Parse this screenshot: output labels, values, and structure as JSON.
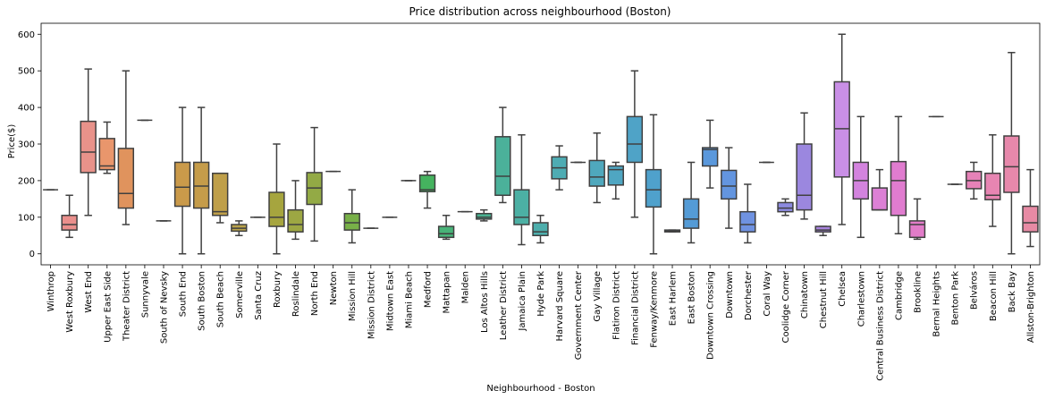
{
  "chart_data": {
    "type": "boxplot",
    "title": "Price distribution across neighbourhood (Boston)",
    "xlabel": "Neighbourhood - Boston",
    "ylabel": "Price($)",
    "ylim": [
      -30,
      630
    ],
    "yticks": [
      0,
      100,
      200,
      300,
      400,
      500,
      600
    ],
    "grid": false,
    "boxes": [
      {
        "category": "Winthrop",
        "color": "#ea8f8c",
        "whislo": 175,
        "q1": 175,
        "med": 175,
        "q3": 175,
        "whishi": 175
      },
      {
        "category": "West Roxbury",
        "color": "#ea8f8c",
        "whislo": 45,
        "q1": 65,
        "med": 80,
        "q3": 105,
        "whishi": 160
      },
      {
        "category": "West End",
        "color": "#e8928a",
        "whislo": 105,
        "q1": 222,
        "med": 278,
        "q3": 362,
        "whishi": 505
      },
      {
        "category": "Upper East Side",
        "color": "#e9966c",
        "whislo": 220,
        "q1": 230,
        "med": 240,
        "q3": 315,
        "whishi": 360
      },
      {
        "category": "Theater District",
        "color": "#e0935d",
        "whislo": 80,
        "q1": 125,
        "med": 165,
        "q3": 288,
        "whishi": 500
      },
      {
        "category": "Sunnyvale",
        "color": "#d7965c",
        "whislo": 365,
        "q1": 365,
        "med": 365,
        "q3": 365,
        "whishi": 365
      },
      {
        "category": "South of Nevsky",
        "color": "#d29a4e",
        "whislo": 90,
        "q1": 90,
        "med": 90,
        "q3": 90,
        "whishi": 90
      },
      {
        "category": "South End",
        "color": "#ca9a4a",
        "whislo": 0,
        "q1": 130,
        "med": 182,
        "q3": 250,
        "whishi": 400
      },
      {
        "category": "South Boston",
        "color": "#c59c4a",
        "whislo": 0,
        "q1": 125,
        "med": 185,
        "q3": 250,
        "whishi": 400
      },
      {
        "category": "South Beach",
        "color": "#bf9f49",
        "whislo": 85,
        "q1": 105,
        "med": 115,
        "q3": 220,
        "whishi": 220
      },
      {
        "category": "Somerville",
        "color": "#b8a24a",
        "whislo": 50,
        "q1": 62,
        "med": 70,
        "q3": 80,
        "whishi": 90
      },
      {
        "category": "Santa Cruz",
        "color": "#b0a44a",
        "whislo": 100,
        "q1": 100,
        "med": 100,
        "q3": 100,
        "whishi": 100
      },
      {
        "category": "Roxbury",
        "color": "#a6a53e",
        "whislo": 0,
        "q1": 75,
        "med": 100,
        "q3": 168,
        "whishi": 300
      },
      {
        "category": "Roslindale",
        "color": "#9da743",
        "whislo": 40,
        "q1": 60,
        "med": 80,
        "q3": 120,
        "whishi": 200
      },
      {
        "category": "North End",
        "color": "#93aa45",
        "whislo": 35,
        "q1": 135,
        "med": 180,
        "q3": 222,
        "whishi": 345
      },
      {
        "category": "Newton",
        "color": "#85ad46",
        "whislo": 225,
        "q1": 225,
        "med": 225,
        "q3": 225,
        "whishi": 225
      },
      {
        "category": "Mission Hill",
        "color": "#78b048",
        "whislo": 30,
        "q1": 65,
        "med": 85,
        "q3": 110,
        "whishi": 175
      },
      {
        "category": "Mission District",
        "color": "#6cb24b",
        "whislo": 70,
        "q1": 70,
        "med": 70,
        "q3": 70,
        "whishi": 70
      },
      {
        "category": "Midtown East",
        "color": "#5fb44e",
        "whislo": 100,
        "q1": 100,
        "med": 100,
        "q3": 100,
        "whishi": 100
      },
      {
        "category": "Miami Beach",
        "color": "#52b550",
        "whislo": 200,
        "q1": 200,
        "med": 200,
        "q3": 200,
        "whishi": 200
      },
      {
        "category": "Medford",
        "color": "#45b35f",
        "whislo": 125,
        "q1": 170,
        "med": 175,
        "q3": 215,
        "whishi": 225
      },
      {
        "category": "Mattapan",
        "color": "#48b378",
        "whislo": 40,
        "q1": 45,
        "med": 55,
        "q3": 75,
        "whishi": 105
      },
      {
        "category": "Malden",
        "color": "#49b286",
        "whislo": 115,
        "q1": 115,
        "med": 115,
        "q3": 115,
        "whishi": 115
      },
      {
        "category": "Los Altos Hills",
        "color": "#49b290",
        "whislo": 90,
        "q1": 95,
        "med": 100,
        "q3": 110,
        "whishi": 120
      },
      {
        "category": "Leather District",
        "color": "#4bb19a",
        "whislo": 140,
        "q1": 160,
        "med": 212,
        "q3": 320,
        "whishi": 400
      },
      {
        "category": "Jamaica Plain",
        "color": "#4cb0a4",
        "whislo": 25,
        "q1": 80,
        "med": 100,
        "q3": 175,
        "whishi": 325
      },
      {
        "category": "Hyde Park",
        "color": "#4daeac",
        "whislo": 30,
        "q1": 50,
        "med": 60,
        "q3": 85,
        "whishi": 105
      },
      {
        "category": "Harvard Square",
        "color": "#4eacb3",
        "whislo": 175,
        "q1": 205,
        "med": 235,
        "q3": 265,
        "whishi": 295
      },
      {
        "category": "Government Center",
        "color": "#4faab8",
        "whislo": 250,
        "q1": 250,
        "med": 250,
        "q3": 250,
        "whishi": 250
      },
      {
        "category": "Gay Village",
        "color": "#4fa8bd",
        "whislo": 140,
        "q1": 185,
        "med": 210,
        "q3": 255,
        "whishi": 330
      },
      {
        "category": "Flatiron District",
        "color": "#4fa6c2",
        "whislo": 150,
        "q1": 188,
        "med": 230,
        "q3": 240,
        "whishi": 250
      },
      {
        "category": "Financial District",
        "color": "#4fa3c7",
        "whislo": 100,
        "q1": 250,
        "med": 300,
        "q3": 375,
        "whishi": 500
      },
      {
        "category": "Fenway/Kenmore",
        "color": "#4fa1cc",
        "whislo": 0,
        "q1": 128,
        "med": 175,
        "q3": 230,
        "whishi": 380
      },
      {
        "category": "East Harlem",
        "color": "#509ed2",
        "whislo": 60,
        "q1": 60,
        "med": 62,
        "q3": 65,
        "whishi": 65
      },
      {
        "category": "East Boston",
        "color": "#549bd6",
        "whislo": 30,
        "q1": 70,
        "med": 95,
        "q3": 150,
        "whishi": 250
      },
      {
        "category": "Downtown Crossing",
        "color": "#5a98dc",
        "whislo": 180,
        "q1": 240,
        "med": 285,
        "q3": 290,
        "whishi": 365
      },
      {
        "category": "Downtown",
        "color": "#6395df",
        "whislo": 70,
        "q1": 150,
        "med": 185,
        "q3": 228,
        "whishi": 290
      },
      {
        "category": "Dorchester",
        "color": "#6f92e1",
        "whislo": 30,
        "q1": 60,
        "med": 80,
        "q3": 115,
        "whishi": 190
      },
      {
        "category": "Coral Way",
        "color": "#7e8fe1",
        "whislo": 250,
        "q1": 250,
        "med": 250,
        "q3": 250,
        "whishi": 250
      },
      {
        "category": "Coolidge Corner",
        "color": "#8d8be0",
        "whislo": 105,
        "q1": 115,
        "med": 125,
        "q3": 140,
        "whishi": 150
      },
      {
        "category": "Chinatown",
        "color": "#9b87df",
        "whislo": 95,
        "q1": 120,
        "med": 160,
        "q3": 300,
        "whishi": 385
      },
      {
        "category": "Chestnut Hill",
        "color": "#a884dd",
        "whislo": 50,
        "q1": 60,
        "med": 65,
        "q3": 75,
        "whishi": 75
      },
      {
        "category": "Chelsea",
        "color": "#c98fe6",
        "whislo": 80,
        "q1": 210,
        "med": 342,
        "q3": 470,
        "whishi": 600
      },
      {
        "category": "Charlestown",
        "color": "#d383de",
        "whislo": 45,
        "q1": 150,
        "med": 200,
        "q3": 250,
        "whishi": 375
      },
      {
        "category": "Central Business District",
        "color": "#dc80d5",
        "whislo": 120,
        "q1": 120,
        "med": 120,
        "q3": 180,
        "whishi": 230
      },
      {
        "category": "Cambridge",
        "color": "#e07ccf",
        "whislo": 55,
        "q1": 105,
        "med": 200,
        "q3": 252,
        "whishi": 375
      },
      {
        "category": "Brookline",
        "color": "#e27cc9",
        "whislo": 40,
        "q1": 45,
        "med": 80,
        "q3": 90,
        "whishi": 150
      },
      {
        "category": "Bernal Heights",
        "color": "#e47cc2",
        "whislo": 375,
        "q1": 375,
        "med": 375,
        "q3": 375,
        "whishi": 375
      },
      {
        "category": "Benton Park",
        "color": "#e57fbd",
        "whislo": 190,
        "q1": 190,
        "med": 190,
        "q3": 190,
        "whishi": 190
      },
      {
        "category": "Belváros",
        "color": "#e682b8",
        "whislo": 150,
        "q1": 178,
        "med": 200,
        "q3": 225,
        "whishi": 250
      },
      {
        "category": "Beacon Hill",
        "color": "#e785b2",
        "whislo": 75,
        "q1": 148,
        "med": 160,
        "q3": 220,
        "whishi": 325
      },
      {
        "category": "Back Bay",
        "color": "#e788ab",
        "whislo": 0,
        "q1": 168,
        "med": 238,
        "q3": 322,
        "whishi": 550
      },
      {
        "category": "Allston-Brighton",
        "color": "#e78aa4",
        "whislo": 20,
        "q1": 60,
        "med": 85,
        "q3": 130,
        "whishi": 230
      }
    ]
  }
}
